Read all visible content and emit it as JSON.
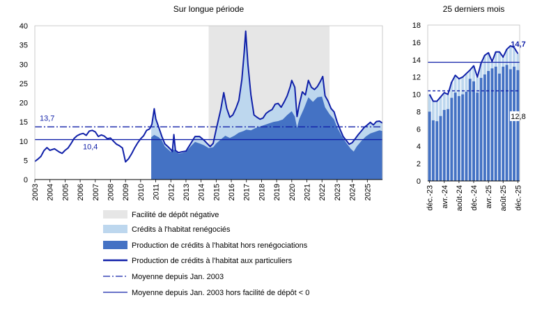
{
  "colors": {
    "grey_band": "#e6e6e6",
    "light_blue": "#bdd7ee",
    "mid_blue": "#4472c4",
    "dark_blue": "#0f1fa8",
    "axis": "#000000"
  },
  "chart_data": [
    {
      "type": "area",
      "title": "Sur longue période",
      "ylim": [
        0,
        40
      ],
      "y_ticks": [
        0,
        5,
        10,
        15,
        20,
        25,
        30,
        35,
        40
      ],
      "x_tick_labels": [
        "2003",
        "2004",
        "2005",
        "2006",
        "2007",
        "2008",
        "2009",
        "2010",
        "2011",
        "2012",
        "2013",
        "2014",
        "2015",
        "2016",
        "2017",
        "2018",
        "2019",
        "2020",
        "2021",
        "2022",
        "2023",
        "2024",
        "2025"
      ],
      "x_range": [
        2003.0,
        2026.0
      ],
      "negative_rate_period": [
        2014.5,
        2022.5
      ],
      "hline_avg_all": 13.7,
      "hline_avg_all_label": "13,7",
      "hline_avg_excl": 10.4,
      "hline_avg_excl_label": "10,4",
      "line_production": [
        [
          2003.0,
          4.7
        ],
        [
          2003.2,
          5.3
        ],
        [
          2003.4,
          6.0
        ],
        [
          2003.6,
          7.5
        ],
        [
          2003.8,
          8.3
        ],
        [
          2004.0,
          7.6
        ],
        [
          2004.3,
          8.0
        ],
        [
          2004.6,
          7.2
        ],
        [
          2004.8,
          6.8
        ],
        [
          2005.0,
          7.6
        ],
        [
          2005.2,
          8.2
        ],
        [
          2005.4,
          9.4
        ],
        [
          2005.6,
          10.7
        ],
        [
          2005.8,
          11.4
        ],
        [
          2006.0,
          11.8
        ],
        [
          2006.2,
          12.0
        ],
        [
          2006.4,
          11.5
        ],
        [
          2006.6,
          12.6
        ],
        [
          2006.8,
          12.8
        ],
        [
          2007.0,
          12.4
        ],
        [
          2007.2,
          11.2
        ],
        [
          2007.4,
          11.6
        ],
        [
          2007.6,
          11.3
        ],
        [
          2007.8,
          10.6
        ],
        [
          2008.0,
          10.8
        ],
        [
          2008.2,
          10.0
        ],
        [
          2008.4,
          9.2
        ],
        [
          2008.6,
          8.8
        ],
        [
          2008.8,
          8.2
        ],
        [
          2009.0,
          4.6
        ],
        [
          2009.2,
          5.4
        ],
        [
          2009.4,
          6.7
        ],
        [
          2009.6,
          8.2
        ],
        [
          2009.8,
          9.5
        ],
        [
          2010.0,
          10.6
        ],
        [
          2010.2,
          11.4
        ],
        [
          2010.4,
          12.8
        ],
        [
          2010.6,
          13.2
        ],
        [
          2010.75,
          14.4
        ],
        [
          2010.9,
          18.4
        ],
        [
          2011.0,
          15.8
        ],
        [
          2011.2,
          13.6
        ],
        [
          2011.4,
          11.3
        ],
        [
          2011.6,
          9.3
        ],
        [
          2011.8,
          8.6
        ],
        [
          2012.0,
          7.8
        ],
        [
          2012.1,
          7.3
        ],
        [
          2012.2,
          11.7
        ],
        [
          2012.3,
          7.6
        ],
        [
          2012.5,
          7.0
        ],
        [
          2012.7,
          7.2
        ],
        [
          2013.0,
          7.4
        ],
        [
          2013.3,
          9.3
        ],
        [
          2013.6,
          11.2
        ],
        [
          2013.9,
          11.2
        ],
        [
          2014.2,
          10.2
        ],
        [
          2014.4,
          9.4
        ],
        [
          2014.6,
          8.6
        ],
        [
          2014.8,
          9.4
        ],
        [
          2015.0,
          13.0
        ],
        [
          2015.3,
          18.2
        ],
        [
          2015.5,
          22.6
        ],
        [
          2015.7,
          18.5
        ],
        [
          2015.9,
          16.2
        ],
        [
          2016.1,
          16.8
        ],
        [
          2016.3,
          18.5
        ],
        [
          2016.5,
          20.6
        ],
        [
          2016.7,
          26.0
        ],
        [
          2016.85,
          33.0
        ],
        [
          2016.95,
          38.6
        ],
        [
          2017.1,
          30.0
        ],
        [
          2017.3,
          22.0
        ],
        [
          2017.5,
          16.8
        ],
        [
          2017.7,
          16.2
        ],
        [
          2017.9,
          15.7
        ],
        [
          2018.1,
          16.0
        ],
        [
          2018.3,
          17.2
        ],
        [
          2018.5,
          17.8
        ],
        [
          2018.7,
          18.2
        ],
        [
          2018.9,
          19.6
        ],
        [
          2019.1,
          19.8
        ],
        [
          2019.3,
          18.8
        ],
        [
          2019.5,
          20.2
        ],
        [
          2019.7,
          21.8
        ],
        [
          2019.9,
          24.2
        ],
        [
          2020.0,
          25.8
        ],
        [
          2020.2,
          24.0
        ],
        [
          2020.35,
          16.4
        ],
        [
          2020.5,
          19.6
        ],
        [
          2020.7,
          22.8
        ],
        [
          2020.9,
          22.0
        ],
        [
          2021.1,
          25.8
        ],
        [
          2021.3,
          24.0
        ],
        [
          2021.5,
          23.4
        ],
        [
          2021.7,
          24.2
        ],
        [
          2021.9,
          25.6
        ],
        [
          2022.05,
          26.8
        ],
        [
          2022.2,
          21.8
        ],
        [
          2022.4,
          20.4
        ],
        [
          2022.6,
          18.5
        ],
        [
          2022.8,
          17.6
        ],
        [
          2023.0,
          15.0
        ],
        [
          2023.2,
          13.0
        ],
        [
          2023.4,
          11.2
        ],
        [
          2023.6,
          10.2
        ],
        [
          2023.8,
          9.2
        ],
        [
          2024.0,
          9.6
        ],
        [
          2024.2,
          10.6
        ],
        [
          2024.4,
          11.7
        ],
        [
          2024.6,
          12.6
        ],
        [
          2024.8,
          13.6
        ],
        [
          2025.0,
          14.2
        ],
        [
          2025.2,
          14.9
        ],
        [
          2025.4,
          14.2
        ],
        [
          2025.6,
          15.1
        ],
        [
          2025.8,
          15.2
        ],
        [
          2026.0,
          14.7
        ]
      ],
      "area_production_excl_reneg_start": 2010.7,
      "area_production_excl_reneg": [
        [
          2010.7,
          11.0
        ],
        [
          2010.9,
          11.6
        ],
        [
          2011.0,
          11.4
        ],
        [
          2011.2,
          11.0
        ],
        [
          2011.4,
          10.2
        ],
        [
          2011.6,
          8.6
        ],
        [
          2011.8,
          7.9
        ],
        [
          2012.0,
          7.2
        ],
        [
          2012.2,
          7.8
        ],
        [
          2012.5,
          6.7
        ],
        [
          2012.8,
          7.0
        ],
        [
          2013.0,
          7.2
        ],
        [
          2013.3,
          8.6
        ],
        [
          2013.6,
          9.8
        ],
        [
          2013.9,
          9.4
        ],
        [
          2014.2,
          8.9
        ],
        [
          2014.5,
          8.2
        ],
        [
          2014.8,
          8.4
        ],
        [
          2015.0,
          9.4
        ],
        [
          2015.3,
          10.4
        ],
        [
          2015.6,
          11.4
        ],
        [
          2015.9,
          10.8
        ],
        [
          2016.2,
          11.4
        ],
        [
          2016.5,
          12.2
        ],
        [
          2016.8,
          12.6
        ],
        [
          2017.0,
          13.0
        ],
        [
          2017.3,
          12.8
        ],
        [
          2017.6,
          13.4
        ],
        [
          2017.9,
          13.8
        ],
        [
          2018.2,
          14.2
        ],
        [
          2018.5,
          14.6
        ],
        [
          2018.8,
          15.0
        ],
        [
          2019.1,
          15.2
        ],
        [
          2019.4,
          15.6
        ],
        [
          2019.7,
          16.8
        ],
        [
          2020.0,
          17.8
        ],
        [
          2020.2,
          16.4
        ],
        [
          2020.35,
          13.5
        ],
        [
          2020.5,
          15.8
        ],
        [
          2020.8,
          18.4
        ],
        [
          2021.1,
          21.4
        ],
        [
          2021.4,
          20.2
        ],
        [
          2021.7,
          21.4
        ],
        [
          2022.0,
          21.6
        ],
        [
          2022.2,
          18.8
        ],
        [
          2022.5,
          17.0
        ],
        [
          2022.8,
          15.6
        ],
        [
          2023.0,
          13.6
        ],
        [
          2023.3,
          11.4
        ],
        [
          2023.6,
          9.6
        ],
        [
          2023.9,
          8.0
        ],
        [
          2024.1,
          7.3
        ],
        [
          2024.3,
          8.6
        ],
        [
          2024.6,
          10.0
        ],
        [
          2024.9,
          11.2
        ],
        [
          2025.2,
          12.0
        ],
        [
          2025.5,
          12.4
        ],
        [
          2025.8,
          12.8
        ],
        [
          2026.0,
          12.6
        ]
      ]
    },
    {
      "type": "bar",
      "title": "25 derniers mois",
      "ylim": [
        0,
        18
      ],
      "y_ticks": [
        0,
        2,
        4,
        6,
        8,
        10,
        12,
        14,
        16,
        18
      ],
      "x_tick_labels": [
        "déc.-23",
        "avr.-24",
        "août-24",
        "déc.-24",
        "avr.-25",
        "août-25",
        "déc.-25"
      ],
      "x_tick_positions": [
        0,
        4,
        8,
        12,
        16,
        20,
        24
      ],
      "hline_avg_all": 13.7,
      "hline_avg_excl": 10.4,
      "last_total_label": "14,7",
      "last_excl_label": "12,8",
      "production_excl_reneg": [
        8.0,
        7.0,
        6.9,
        7.5,
        8.2,
        8.3,
        9.6,
        10.2,
        9.8,
        10.0,
        10.3,
        11.8,
        11.5,
        10.2,
        11.9,
        12.3,
        12.7,
        13.0,
        13.2,
        12.4,
        13.2,
        13.4,
        12.9,
        13.2,
        12.8
      ],
      "total_production": [
        10.0,
        9.2,
        9.2,
        9.7,
        10.2,
        10.0,
        11.4,
        12.2,
        11.8,
        12.0,
        12.4,
        12.8,
        13.3,
        12.0,
        13.6,
        14.5,
        14.8,
        13.8,
        14.9,
        14.9,
        14.3,
        15.2,
        15.6,
        15.4,
        14.7
      ]
    }
  ],
  "legend": [
    {
      "key": "negative_rate",
      "label": "Facilité de dépôt négative"
    },
    {
      "key": "reneg",
      "label": "Crédits à l'habitat renégociés"
    },
    {
      "key": "excl_reneg",
      "label": "Production de crédits à l'habitat hors renégociations"
    },
    {
      "key": "production",
      "label": "Production de crédits à l'habitat aux particuliers"
    },
    {
      "key": "avg_all",
      "label": "Moyenne depuis Jan. 2003"
    },
    {
      "key": "avg_excl",
      "label": "Moyenne depuis Jan. 2003 hors facilité de dépôt < 0"
    }
  ]
}
